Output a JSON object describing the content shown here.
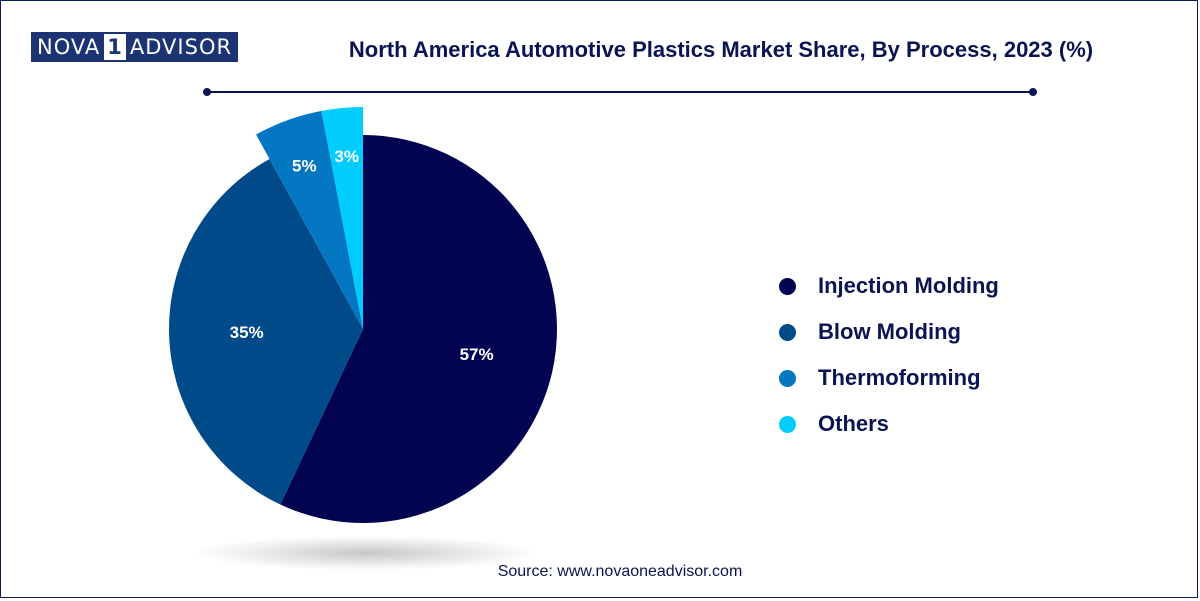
{
  "logo": {
    "part1": "NOVA",
    "part2": "1",
    "part3": "ADVISOR"
  },
  "colors": {
    "injection_molding": "#020452",
    "blow_molding": "#014a8a",
    "thermoforming": "#0477c2",
    "others": "#00cdfd"
  },
  "chart_data": {
    "type": "pie",
    "title": "North America Automotive Plastics Market Share, By Process, 2023 (%)",
    "legend_position": "right",
    "slices": [
      {
        "name": "Injection Molding",
        "value": 57,
        "label": "57%",
        "color": "#020452",
        "exploded": false
      },
      {
        "name": "Blow Molding",
        "value": 35,
        "label": "35%",
        "color": "#014a8a",
        "exploded": false
      },
      {
        "name": "Thermoforming",
        "value": 5,
        "label": "5%",
        "color": "#0477c2",
        "exploded": true
      },
      {
        "name": "Others",
        "value": 3,
        "label": "3%",
        "color": "#00cdfd",
        "exploded": true
      }
    ]
  },
  "source": "Source: www.novaoneadvisor.com"
}
